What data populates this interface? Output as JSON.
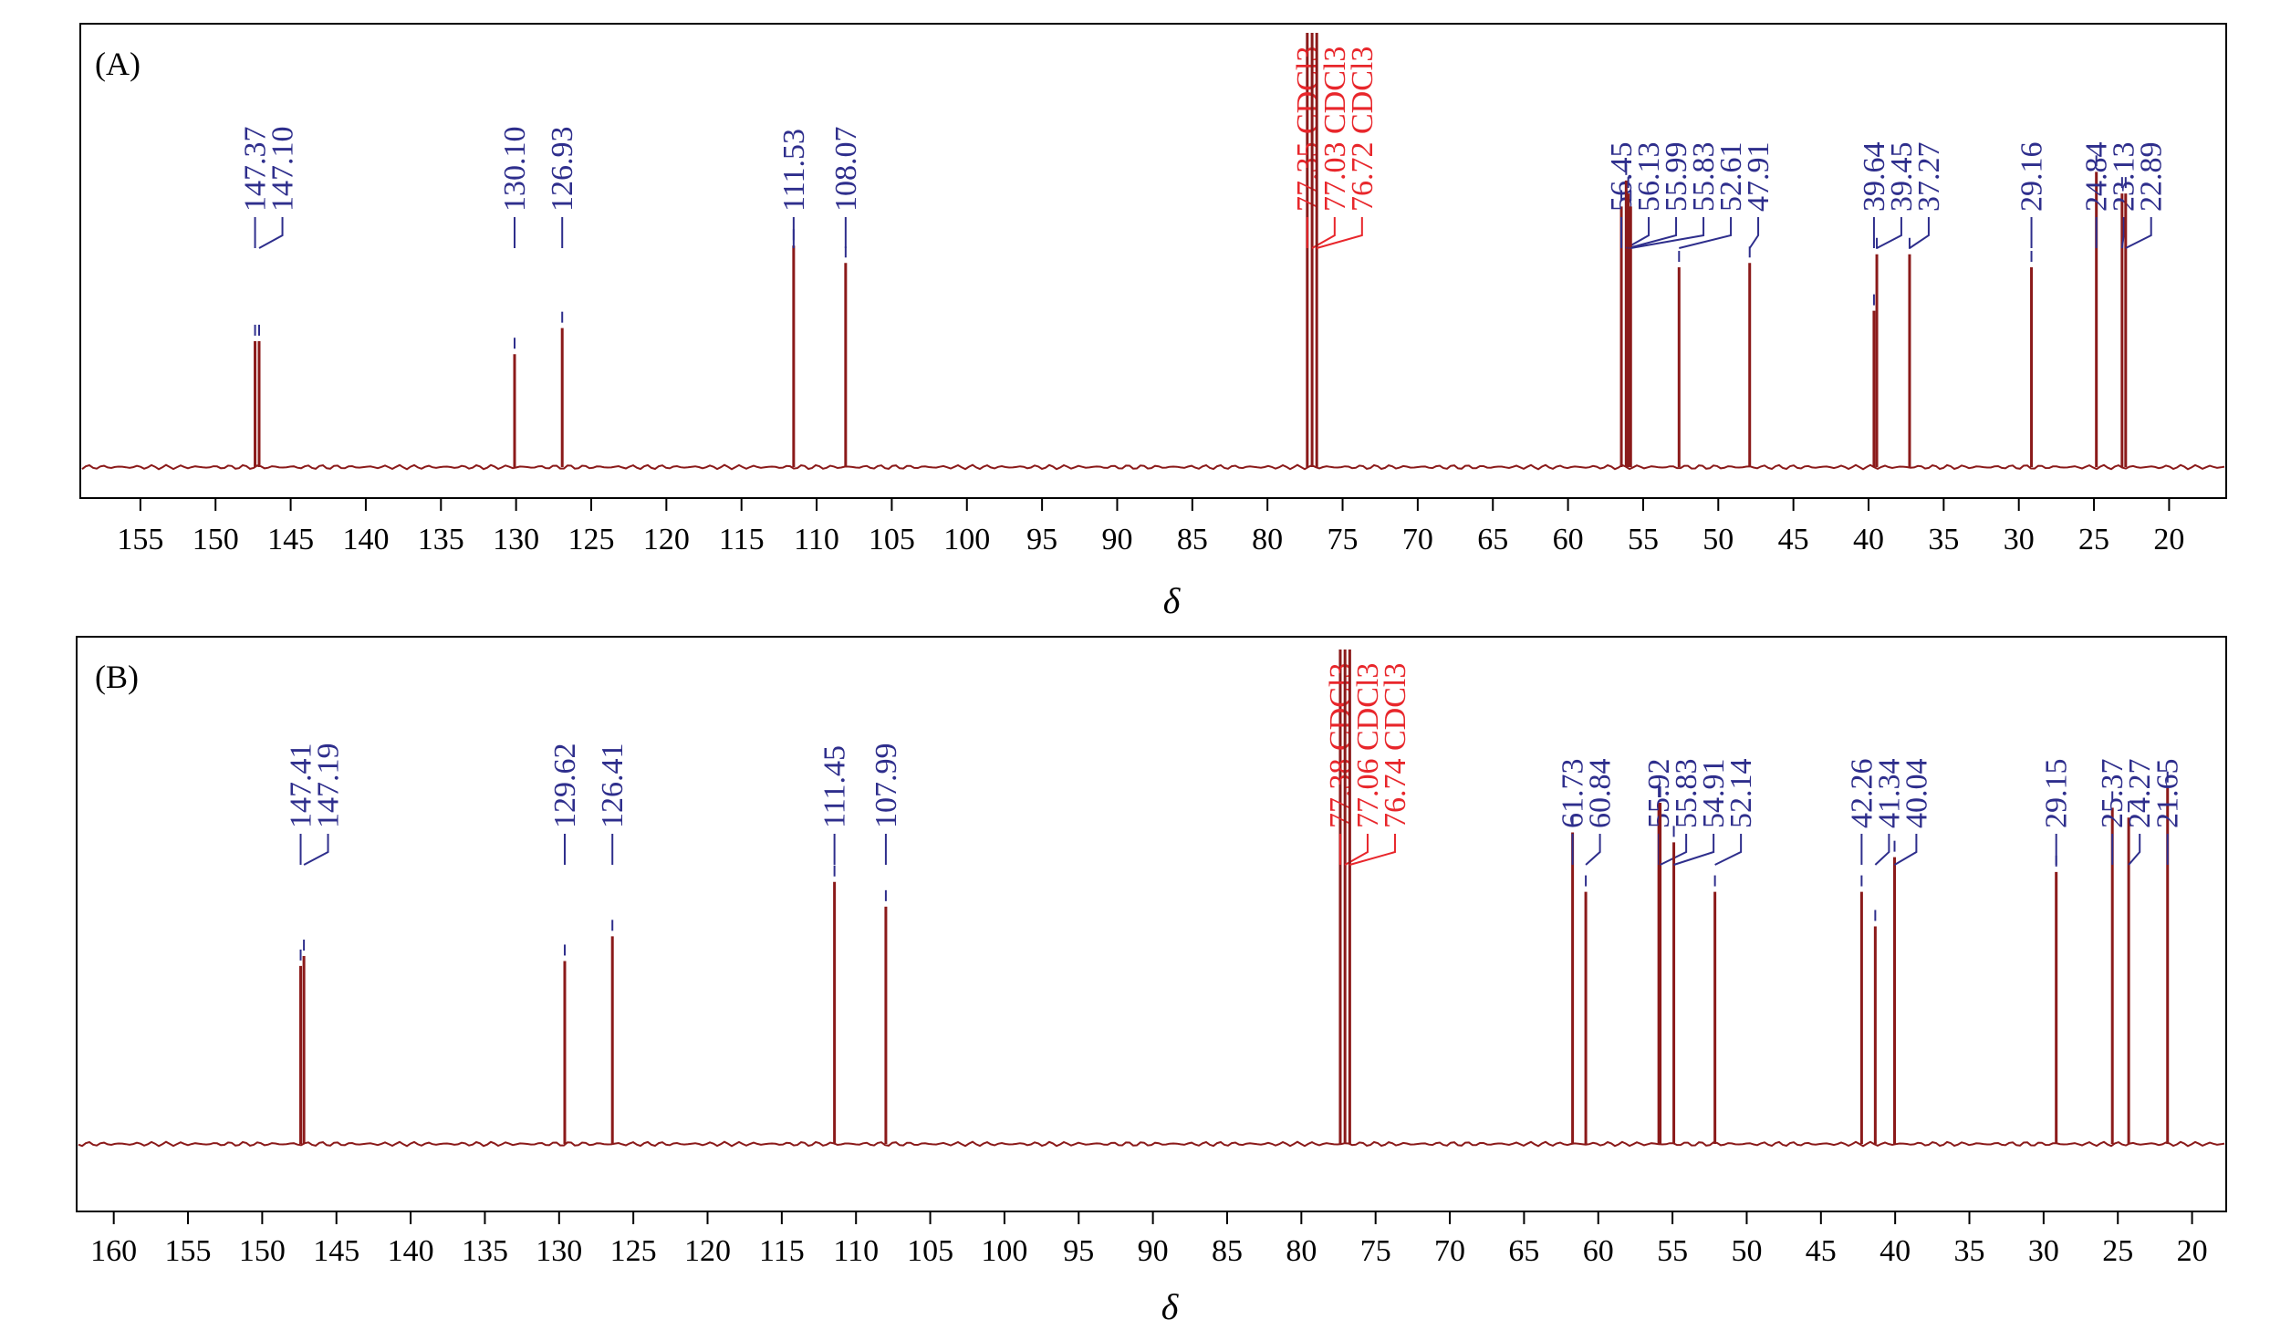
{
  "colors": {
    "spectrum": "#8b1a1a",
    "peak_label": "#2e2e8c",
    "solvent_label": "#e8262b",
    "axis": "#000000"
  },
  "chart_data": [
    {
      "type": "line",
      "panel_label": "(A)",
      "xlabel": "δ",
      "ylabel": "",
      "xlim": [
        159.0,
        16.2
      ],
      "x_reversed": true,
      "xticks": [
        155,
        150,
        145,
        140,
        135,
        130,
        125,
        120,
        115,
        110,
        105,
        100,
        95,
        90,
        85,
        80,
        75,
        70,
        65,
        60,
        55,
        50,
        45,
        40,
        35,
        30,
        25,
        20
      ],
      "peaks": [
        {
          "shift": 147.37,
          "label": "147.37",
          "intensity": 0.29
        },
        {
          "shift": 147.1,
          "label": "147.10",
          "intensity": 0.29
        },
        {
          "shift": 130.1,
          "label": "130.10",
          "intensity": 0.26
        },
        {
          "shift": 126.93,
          "label": "126.93",
          "intensity": 0.32
        },
        {
          "shift": 111.53,
          "label": "111.53",
          "intensity": 0.51
        },
        {
          "shift": 108.07,
          "label": "108.07",
          "intensity": 0.47
        },
        {
          "shift": 77.35,
          "label": "77.35 CDCl3",
          "intensity": 1.0,
          "solvent": true
        },
        {
          "shift": 77.03,
          "label": "77.03 CDCl3",
          "intensity": 1.0,
          "solvent": true
        },
        {
          "shift": 76.72,
          "label": "76.72 CDCl3",
          "intensity": 1.0,
          "solvent": true
        },
        {
          "shift": 56.45,
          "label": "56.45",
          "intensity": 0.6
        },
        {
          "shift": 56.13,
          "label": "56.13",
          "intensity": 0.66
        },
        {
          "shift": 55.99,
          "label": "55.99",
          "intensity": 0.63
        },
        {
          "shift": 55.83,
          "label": "55.83",
          "intensity": 0.6
        },
        {
          "shift": 52.61,
          "label": "52.61",
          "intensity": 0.46
        },
        {
          "shift": 47.91,
          "label": "47.91",
          "intensity": 0.47
        },
        {
          "shift": 39.64,
          "label": "39.64",
          "intensity": 0.36
        },
        {
          "shift": 39.45,
          "label": "39.45",
          "intensity": 0.49
        },
        {
          "shift": 37.27,
          "label": "37.27",
          "intensity": 0.49
        },
        {
          "shift": 29.16,
          "label": "29.16",
          "intensity": 0.46
        },
        {
          "shift": 24.84,
          "label": "24.84",
          "intensity": 0.68
        },
        {
          "shift": 23.13,
          "label": "23.13",
          "intensity": 0.63
        },
        {
          "shift": 22.89,
          "label": "22.89",
          "intensity": 0.63
        }
      ]
    },
    {
      "type": "line",
      "panel_label": "(B)",
      "xlabel": "δ",
      "ylabel": "",
      "xlim": [
        162.5,
        17.7
      ],
      "x_reversed": true,
      "xticks": [
        160,
        155,
        150,
        145,
        140,
        135,
        130,
        125,
        120,
        115,
        110,
        105,
        100,
        95,
        90,
        85,
        80,
        75,
        70,
        65,
        60,
        55,
        50,
        45,
        40,
        35,
        30,
        25,
        20
      ],
      "peaks": [
        {
          "shift": 147.41,
          "label": "147.41",
          "intensity": 0.36
        },
        {
          "shift": 147.19,
          "label": "147.19",
          "intensity": 0.38
        },
        {
          "shift": 129.62,
          "label": "129.62",
          "intensity": 0.37
        },
        {
          "shift": 126.41,
          "label": "126.41",
          "intensity": 0.42
        },
        {
          "shift": 111.45,
          "label": "111.45",
          "intensity": 0.53
        },
        {
          "shift": 107.99,
          "label": "107.99",
          "intensity": 0.48
        },
        {
          "shift": 77.38,
          "label": "77.38 CDCl3",
          "intensity": 1.0,
          "solvent": true
        },
        {
          "shift": 77.06,
          "label": "77.06 CDCl3",
          "intensity": 1.0,
          "solvent": true
        },
        {
          "shift": 76.74,
          "label": "76.74 CDCl3",
          "intensity": 1.0,
          "solvent": true
        },
        {
          "shift": 61.73,
          "label": "61.73",
          "intensity": 0.63
        },
        {
          "shift": 60.84,
          "label": "60.84",
          "intensity": 0.51
        },
        {
          "shift": 55.92,
          "label": "55.92",
          "intensity": 0.69
        },
        {
          "shift": 55.83,
          "label": "55.83",
          "intensity": 0.69
        },
        {
          "shift": 54.91,
          "label": "54.91",
          "intensity": 0.61
        },
        {
          "shift": 52.14,
          "label": "52.14",
          "intensity": 0.51
        },
        {
          "shift": 42.26,
          "label": "42.26",
          "intensity": 0.51
        },
        {
          "shift": 41.34,
          "label": "41.34",
          "intensity": 0.44
        },
        {
          "shift": 40.04,
          "label": "40.04",
          "intensity": 0.58
        },
        {
          "shift": 29.15,
          "label": "29.15",
          "intensity": 0.55
        },
        {
          "shift": 25.37,
          "label": "25.37",
          "intensity": 0.68
        },
        {
          "shift": 24.27,
          "label": "24.27",
          "intensity": 0.66
        },
        {
          "shift": 21.65,
          "label": "21.65",
          "intensity": 0.72
        }
      ]
    }
  ]
}
